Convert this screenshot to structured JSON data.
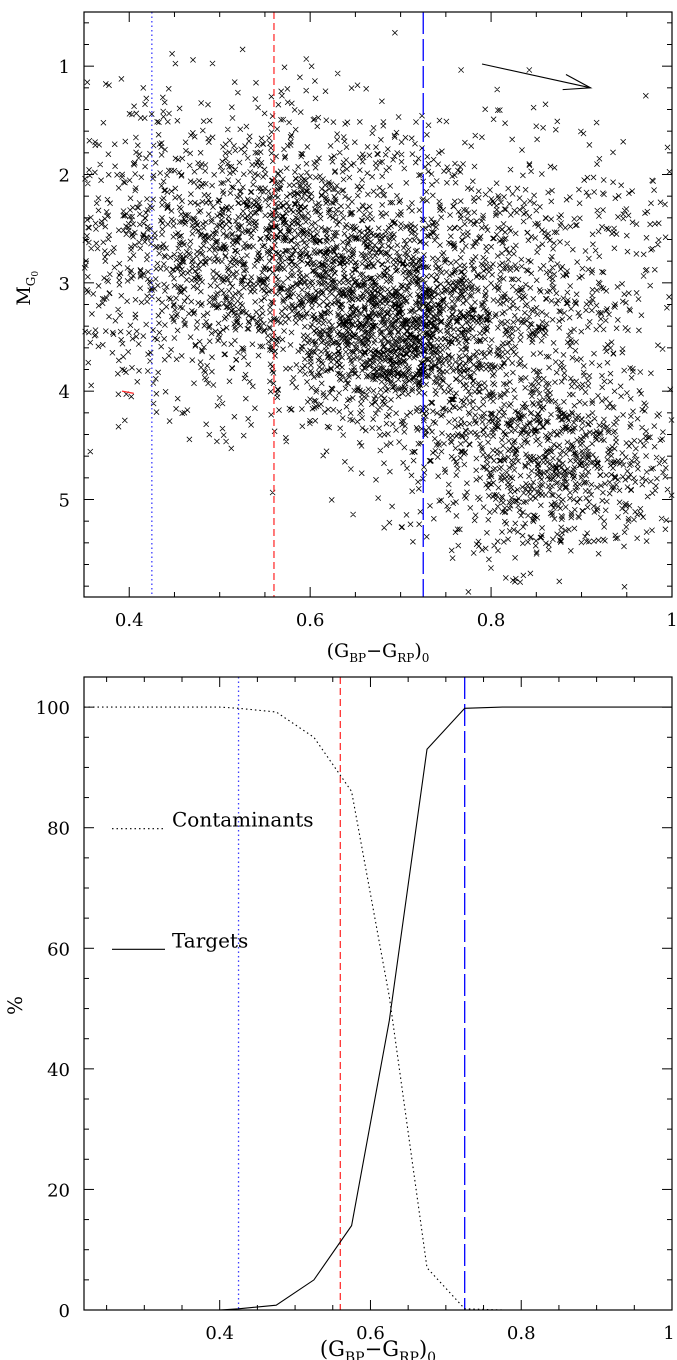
{
  "chart_data": [
    {
      "type": "scatter",
      "xlabel_main": "(G",
      "xlabel_sub1": "BP",
      "xlabel_mid": "−G",
      "xlabel_sub2": "RP",
      "xlabel_end": ")",
      "xlabel_sub3": "0",
      "ylabel_main": "M",
      "ylabel_sub": "G",
      "ylabel_subsub": "0",
      "xlim": [
        0.35,
        1.0
      ],
      "ylim": [
        5.9,
        0.5
      ],
      "xticks": [
        0.4,
        0.6,
        0.8,
        1.0
      ],
      "xtick_labels": [
        "0.4",
        "0.6",
        "0.8",
        "1"
      ],
      "yticks": [
        1,
        2,
        3,
        4,
        5
      ],
      "ytick_labels": [
        "1",
        "2",
        "3",
        "4",
        "5"
      ],
      "marker": "×",
      "point_count": 5000,
      "clusters": [
        {
          "x": [
            0.55,
            0.13
          ],
          "y": [
            2.7,
            0.65
          ],
          "weight": 0.45
        },
        {
          "x": [
            0.7,
            0.06
          ],
          "y": [
            3.5,
            0.45
          ],
          "weight": 0.25
        },
        {
          "x": [
            0.86,
            0.07
          ],
          "y": [
            4.6,
            0.45
          ],
          "weight": 0.2
        },
        {
          "x": [
            0.86,
            0.08
          ],
          "y": [
            2.9,
            0.55
          ],
          "weight": 0.1
        }
      ],
      "vlines": [
        {
          "x": 0.425,
          "color": "#3c3cff",
          "style": "dotted"
        },
        {
          "x": 0.56,
          "color": "#ff3333",
          "style": "dashed"
        },
        {
          "x": 0.725,
          "color": "#0000ff",
          "style": "longdash"
        }
      ],
      "reddening_vector": {
        "from": [
          0.79,
          0.98
        ],
        "to": [
          0.91,
          1.2
        ]
      },
      "red_tick": {
        "from": [
          0.405,
          4.02
        ],
        "to": [
          0.392,
          4.0
        ]
      }
    },
    {
      "type": "line",
      "xlabel_main": "(G",
      "xlabel_sub1": "BP",
      "xlabel_mid": "−G",
      "xlabel_sub2": "RP",
      "xlabel_end": ")",
      "xlabel_sub3": "0",
      "ylabel": "%",
      "xlim": [
        0.22,
        1.0
      ],
      "ylim": [
        0,
        105
      ],
      "xticks": [
        0.4,
        0.6,
        0.8,
        1.0
      ],
      "xtick_labels": [
        "0.4",
        "0.6",
        "0.8",
        "1"
      ],
      "yticks": [
        0,
        20,
        40,
        60,
        80,
        100
      ],
      "ytick_labels": [
        "0",
        "20",
        "40",
        "60",
        "80",
        "100"
      ],
      "series": [
        {
          "name": "Contaminants",
          "style": "dotted",
          "x": [
            0.22,
            0.3,
            0.4,
            0.425,
            0.475,
            0.525,
            0.575,
            0.625,
            0.675,
            0.725,
            0.775,
            1.0
          ],
          "values": [
            100,
            100,
            100,
            99.8,
            99.2,
            95,
            86,
            52,
            7,
            0.2,
            0,
            0
          ]
        },
        {
          "name": "Targets",
          "style": "solid",
          "x": [
            0.22,
            0.3,
            0.4,
            0.425,
            0.475,
            0.525,
            0.575,
            0.625,
            0.675,
            0.725,
            0.775,
            1.0
          ],
          "values": [
            0,
            0,
            0,
            0.2,
            0.8,
            5,
            14,
            48,
            93,
            99.8,
            100,
            100
          ]
        }
      ],
      "legend": [
        {
          "label": "Contaminants",
          "style": "dotted",
          "y": 80
        },
        {
          "label": "Targets",
          "style": "solid",
          "y": 60
        }
      ],
      "vlines": [
        {
          "x": 0.425,
          "color": "#3c3cff",
          "style": "dotted"
        },
        {
          "x": 0.56,
          "color": "#ff3333",
          "style": "dashed"
        },
        {
          "x": 0.725,
          "color": "#0000ff",
          "style": "longdash"
        }
      ]
    }
  ]
}
